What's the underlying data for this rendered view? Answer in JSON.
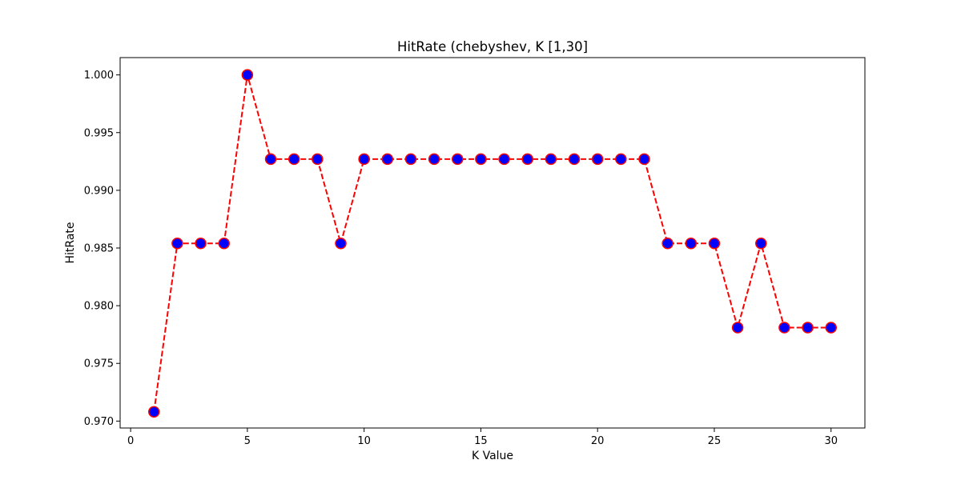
{
  "chart_data": {
    "type": "line",
    "title": "HitRate (chebyshev, K [1,30]",
    "xlabel": "K Value",
    "ylabel": "HitRate",
    "xlim": [
      -0.45,
      31.45
    ],
    "ylim": [
      0.9694,
      1.0015
    ],
    "xticks": [
      0,
      5,
      10,
      15,
      20,
      25,
      30
    ],
    "yticks": [
      0.97,
      0.975,
      0.98,
      0.985,
      0.99,
      0.995,
      1.0
    ],
    "ytick_labels": [
      "0.970",
      "0.975",
      "0.980",
      "0.985",
      "0.990",
      "0.995",
      "1.000"
    ],
    "grid": false,
    "series": [
      {
        "line_color": "#ff0000",
        "line_style": "dashed",
        "marker": "circle",
        "marker_face_color": "#0000ff",
        "marker_edge_color": "#ff0000",
        "x": [
          1,
          2,
          3,
          4,
          5,
          6,
          7,
          8,
          9,
          10,
          11,
          12,
          13,
          14,
          15,
          16,
          17,
          18,
          19,
          20,
          21,
          22,
          23,
          24,
          25,
          26,
          27,
          28,
          29,
          30
        ],
        "y": [
          0.9708,
          0.9854,
          0.9854,
          0.9854,
          1.0,
          0.9927,
          0.9927,
          0.9927,
          0.9854,
          0.9927,
          0.9927,
          0.9927,
          0.9927,
          0.9927,
          0.9927,
          0.9927,
          0.9927,
          0.9927,
          0.9927,
          0.9927,
          0.9927,
          0.9927,
          0.9854,
          0.9854,
          0.9854,
          0.9781,
          0.9854,
          0.9781,
          0.9781,
          0.9781
        ]
      }
    ]
  }
}
